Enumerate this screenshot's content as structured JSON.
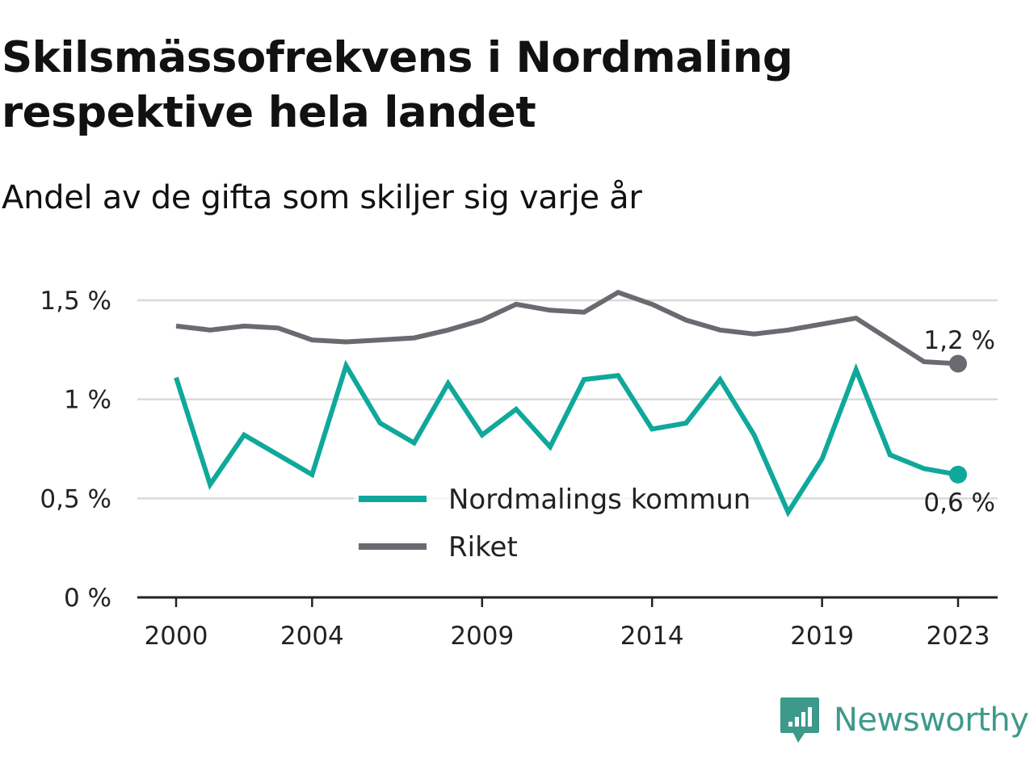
{
  "title": "Skilsmässofrekvens i Nordmaling respektive hela landet",
  "subtitle": "Andel av de gifta som skiljer sig varje år",
  "brand": "Newsworthy",
  "colors": {
    "nordmaling": "#0fa89b",
    "riket": "#6b6a70",
    "grid": "#d9d9d9",
    "axis": "#222222",
    "brand": "#3d9a8b"
  },
  "chart_data": {
    "type": "line",
    "x": [
      2000,
      2001,
      2002,
      2003,
      2004,
      2005,
      2006,
      2007,
      2008,
      2009,
      2010,
      2011,
      2012,
      2013,
      2014,
      2015,
      2016,
      2017,
      2018,
      2019,
      2020,
      2021,
      2022,
      2023
    ],
    "x_ticks": [
      "2000",
      "2004",
      "2009",
      "2014",
      "2019",
      "2023"
    ],
    "y_ticks": [
      "0 %",
      "0,5 %",
      "1 %",
      "1,5 %"
    ],
    "ylim": [
      0,
      1.5
    ],
    "grid": true,
    "legend_position": "bottom-center",
    "series": [
      {
        "name": "Nordmalings kommun",
        "color": "#0fa89b",
        "values": [
          1.11,
          0.57,
          0.82,
          0.72,
          0.62,
          1.17,
          0.88,
          0.78,
          1.08,
          0.82,
          0.95,
          0.76,
          1.1,
          1.12,
          0.85,
          0.88,
          1.1,
          0.82,
          0.43,
          0.7,
          1.15,
          0.72,
          0.65,
          0.62
        ],
        "end_label": "0,6 %"
      },
      {
        "name": "Riket",
        "color": "#6b6a70",
        "values": [
          1.37,
          1.35,
          1.37,
          1.36,
          1.3,
          1.29,
          1.3,
          1.31,
          1.35,
          1.4,
          1.48,
          1.45,
          1.44,
          1.54,
          1.48,
          1.4,
          1.35,
          1.33,
          1.35,
          1.38,
          1.41,
          1.3,
          1.19,
          1.18
        ],
        "end_label": "1,2 %"
      }
    ]
  }
}
